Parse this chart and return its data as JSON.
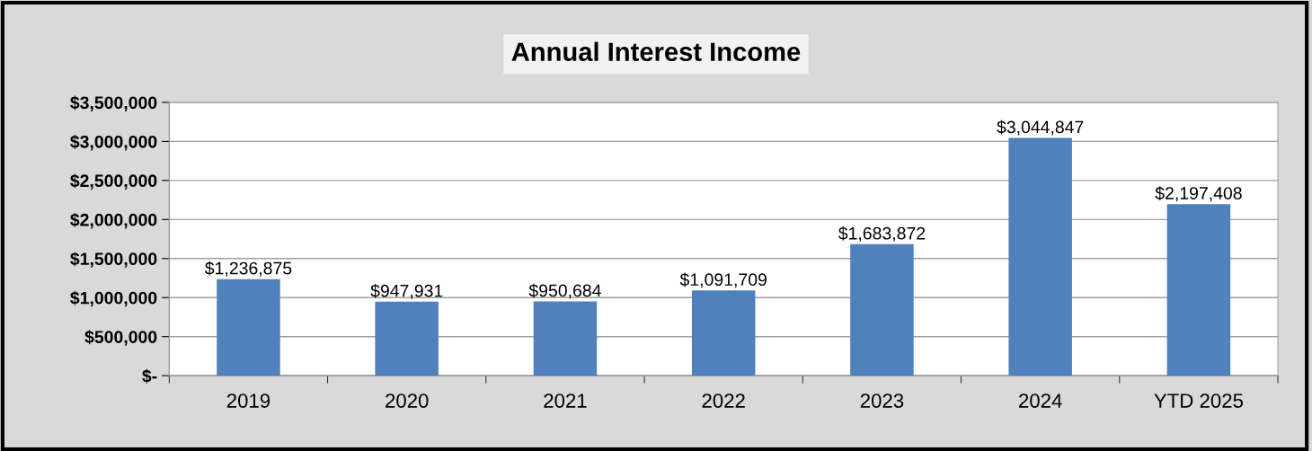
{
  "chart_data": {
    "type": "bar",
    "title": "Annual Interest Income",
    "categories": [
      "2019",
      "2020",
      "2021",
      "2022",
      "2023",
      "2024",
      "YTD 2025"
    ],
    "values": [
      1236875,
      947931,
      950684,
      1091709,
      1683872,
      3044847,
      2197408
    ],
    "value_labels": [
      "$1,236,875",
      "$947,931",
      "$950,684",
      "$1,091,709",
      "$1,683,872",
      "$3,044,847",
      "$2,197,408"
    ],
    "color": "#4f81bd",
    "ylim": [
      0,
      3500000
    ],
    "yticks": [
      {
        "value": 0,
        "label": "$-"
      },
      {
        "value": 500000,
        "label": "$500,000"
      },
      {
        "value": 1000000,
        "label": "$1,000,000"
      },
      {
        "value": 1500000,
        "label": "$1,500,000"
      },
      {
        "value": 2000000,
        "label": "$2,000,000"
      },
      {
        "value": 2500000,
        "label": "$2,500,000"
      },
      {
        "value": 3000000,
        "label": "$3,000,000"
      },
      {
        "value": 3500000,
        "label": "$3,500,000"
      }
    ],
    "grid": "y",
    "legend": false
  }
}
